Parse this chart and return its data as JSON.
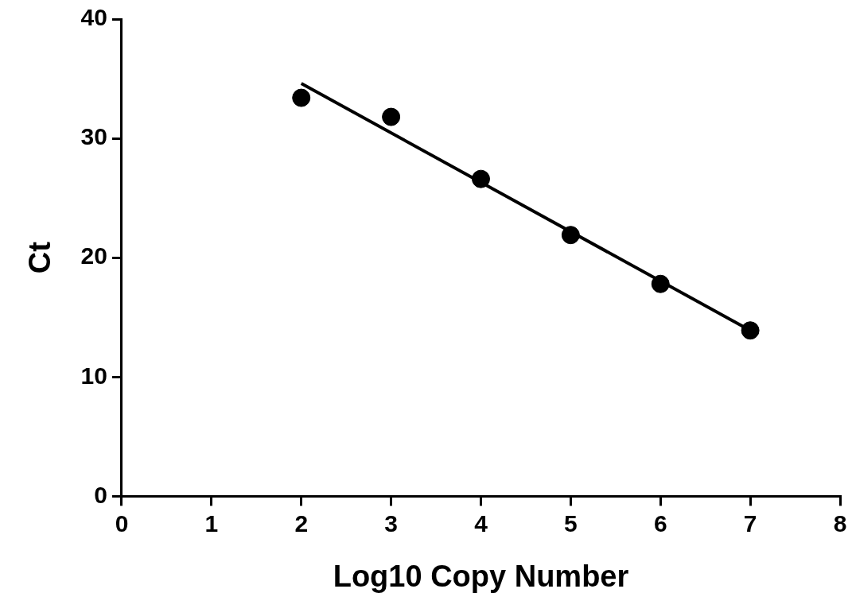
{
  "chart_data": {
    "type": "scatter",
    "xlabel": "Log10 Copy Number",
    "ylabel": "Ct",
    "series": [
      {
        "color": "#000000",
        "marker": "circle",
        "x": [
          2,
          3,
          4,
          5,
          6,
          7
        ],
        "values": [
          33.4,
          31.8,
          26.6,
          21.9,
          17.8,
          13.9
        ]
      },
      {
        "type": "line",
        "color": "#000000",
        "marker": "none",
        "line_style": "solid",
        "x": [
          2,
          7
        ],
        "values": [
          34.6,
          13.9
        ]
      }
    ],
    "xlim": [
      0,
      8
    ],
    "xticks": [
      0,
      1,
      2,
      3,
      4,
      5,
      6,
      7,
      8
    ],
    "ylim": [
      0,
      40
    ],
    "yticks": [
      0,
      10,
      20,
      30,
      40
    ],
    "grid": false,
    "legend": false
  }
}
